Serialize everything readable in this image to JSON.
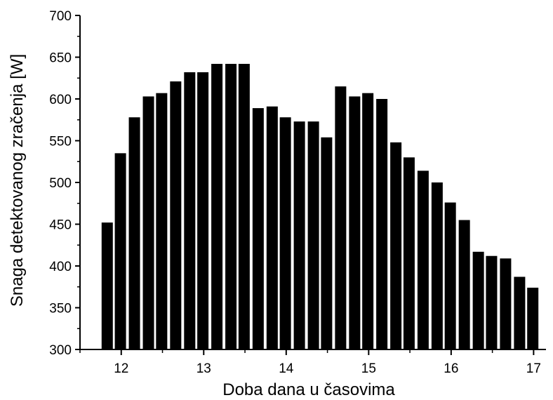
{
  "chart_data": {
    "type": "bar",
    "title": "",
    "xlabel": "Doba dana u časovima",
    "ylabel": "Snaga detektovanog zračenja [W]",
    "xlim": [
      11.5,
      17.15
    ],
    "ylim": [
      300,
      700
    ],
    "xticks": [
      12,
      13,
      14,
      15,
      16,
      17
    ],
    "yticks": [
      300,
      350,
      400,
      450,
      500,
      550,
      600,
      650,
      700
    ],
    "grid": false,
    "legend": "none",
    "bar_color": "#000000",
    "x": [
      11.83,
      11.99,
      12.16,
      12.33,
      12.49,
      12.66,
      12.83,
      12.99,
      13.16,
      13.33,
      13.49,
      13.66,
      13.83,
      13.99,
      14.16,
      14.33,
      14.49,
      14.66,
      14.83,
      14.99,
      15.16,
      15.33,
      15.49,
      15.66,
      15.83,
      15.99,
      16.16,
      16.33,
      16.49,
      16.66,
      16.83,
      16.99
    ],
    "values": [
      452,
      535,
      578,
      603,
      607,
      621,
      632,
      632,
      642,
      642,
      642,
      589,
      591,
      578,
      573,
      573,
      554,
      615,
      603,
      607,
      600,
      548,
      530,
      514,
      500,
      476,
      455,
      417,
      412,
      409,
      387,
      374
    ]
  }
}
